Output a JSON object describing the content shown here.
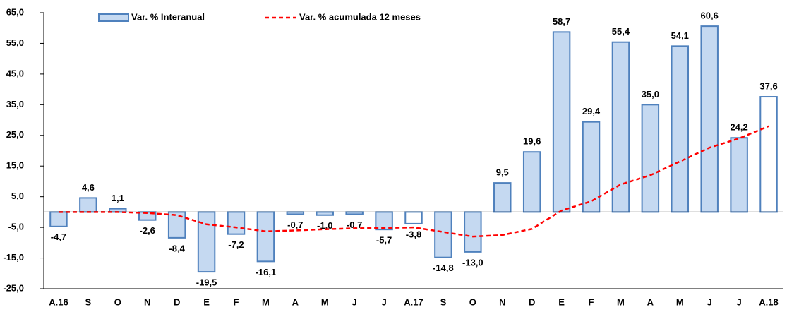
{
  "chart_data": {
    "type": "bar",
    "categories": [
      "A.16",
      "S",
      "O",
      "N",
      "D",
      "E",
      "F",
      "M",
      "A",
      "M",
      "J",
      "J",
      "A.17",
      "S",
      "O",
      "N",
      "D",
      "E",
      "F",
      "M",
      "A",
      "M",
      "J",
      "J",
      "A.18"
    ],
    "series": [
      {
        "name": "Var. % Interanual",
        "type": "bar",
        "color": "#4f81bd",
        "fills": [
          "#c5d9f1",
          "#c5d9f1",
          "#c5d9f1",
          "#c5d9f1",
          "#c5d9f1",
          "#c5d9f1",
          "#c5d9f1",
          "#c5d9f1",
          "#c5d9f1",
          "#c5d9f1",
          "#c5d9f1",
          "#c5d9f1",
          "#ffffff",
          "#c5d9f1",
          "#c5d9f1",
          "#c5d9f1",
          "#c5d9f1",
          "#c5d9f1",
          "#c5d9f1",
          "#c5d9f1",
          "#c5d9f1",
          "#c5d9f1",
          "#c5d9f1",
          "#c5d9f1",
          "#ffffff"
        ],
        "values": [
          -4.7,
          4.6,
          1.1,
          -2.6,
          -8.4,
          -19.5,
          -7.2,
          -16.1,
          -0.7,
          -1.0,
          -0.7,
          -5.7,
          -3.8,
          -14.8,
          -13.0,
          9.5,
          19.6,
          58.7,
          29.4,
          55.4,
          35.0,
          54.1,
          60.6,
          24.2,
          37.6
        ],
        "value_labels": [
          "-4,7",
          "4,6",
          "1,1",
          "-2,6",
          "-8,4",
          "-19,5",
          "-7,2",
          "-16,1",
          "-0,7",
          "-1,0",
          "-0,7",
          "-5,7",
          "-3,8",
          "-14,8",
          "-13,0",
          "9,5",
          "19,6",
          "58,7",
          "29,4",
          "55,4",
          "35,0",
          "54,1",
          "60,6",
          "24,2",
          "37,6"
        ]
      },
      {
        "name": "Var. % acumulada 12 meses",
        "type": "line",
        "color": "#ff0000",
        "values": [
          0,
          0,
          0,
          -0.3,
          -1,
          -4,
          -5,
          -6.3,
          -6,
          -5.6,
          -5.3,
          -5.2,
          -5,
          -6.5,
          -8,
          -7.5,
          -5.5,
          0.5,
          3.5,
          9,
          12,
          16.5,
          21,
          24,
          28
        ]
      }
    ],
    "ylim": [
      -25,
      65
    ],
    "yticks": [
      {
        "value": -25,
        "label": "-25,0"
      },
      {
        "value": -15,
        "label": "-15,0"
      },
      {
        "value": -5,
        "label": "-5,0"
      },
      {
        "value": 5,
        "label": "5,0"
      },
      {
        "value": 15,
        "label": "15,0"
      },
      {
        "value": 25,
        "label": "25,0"
      },
      {
        "value": 35,
        "label": "35,0"
      },
      {
        "value": 45,
        "label": "45,0"
      },
      {
        "value": 55,
        "label": "55,0"
      },
      {
        "value": 65,
        "label": "65,0"
      }
    ],
    "grid": false,
    "legend": "top"
  }
}
